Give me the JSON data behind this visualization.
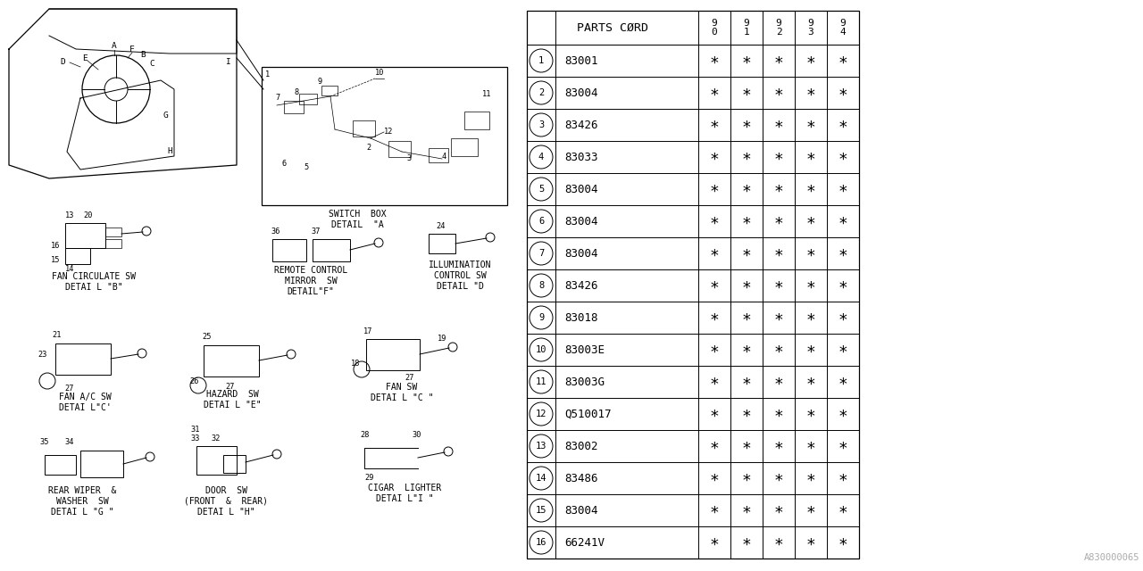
{
  "watermark": "A830000065",
  "table": {
    "rows": [
      {
        "num": "1",
        "part": "83001"
      },
      {
        "num": "2",
        "part": "83004"
      },
      {
        "num": "3",
        "part": "83426"
      },
      {
        "num": "4",
        "part": "83033"
      },
      {
        "num": "5",
        "part": "83004"
      },
      {
        "num": "6",
        "part": "83004"
      },
      {
        "num": "7",
        "part": "83004"
      },
      {
        "num": "8",
        "part": "83426"
      },
      {
        "num": "9",
        "part": "83018"
      },
      {
        "num": "10",
        "part": "83003E"
      },
      {
        "num": "11",
        "part": "83003G"
      },
      {
        "num": "12",
        "part": "Q510017"
      },
      {
        "num": "13",
        "part": "83002"
      },
      {
        "num": "14",
        "part": "83486"
      },
      {
        "num": "15",
        "part": "83004"
      },
      {
        "num": "16",
        "part": "66241V"
      }
    ]
  },
  "bg_color": "#ffffff"
}
